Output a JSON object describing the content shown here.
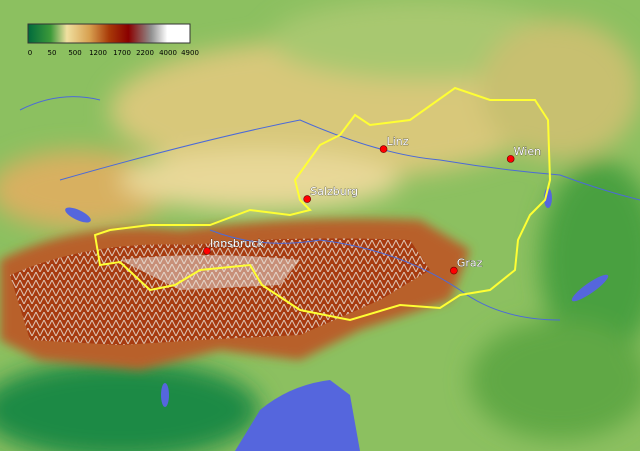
{
  "map": {
    "type": "topographic relief map",
    "legend": {
      "ticks": [
        "0",
        "50",
        "500",
        "1200",
        "1700",
        "2200",
        "4000",
        "4900"
      ],
      "colors": [
        "#006a3c",
        "#3d9a3a",
        "#f0e0a0",
        "#d8a050",
        "#a83a08",
        "#8a0000",
        "#909090",
        "#ffffff"
      ]
    },
    "border_color": "#ffff33",
    "water_color": "#5566dd",
    "cities": [
      {
        "name": "Linz",
        "lon": 14.29,
        "lat": 48.31
      },
      {
        "name": "Wien",
        "lon": 16.37,
        "lat": 48.21
      },
      {
        "name": "Salzburg",
        "lon": 13.04,
        "lat": 47.8
      },
      {
        "name": "Innsbruck",
        "lon": 11.4,
        "lat": 47.27
      },
      {
        "name": "Graz",
        "lon": 15.44,
        "lat": 47.07
      }
    ],
    "city_marker_color": "#ff0000"
  }
}
